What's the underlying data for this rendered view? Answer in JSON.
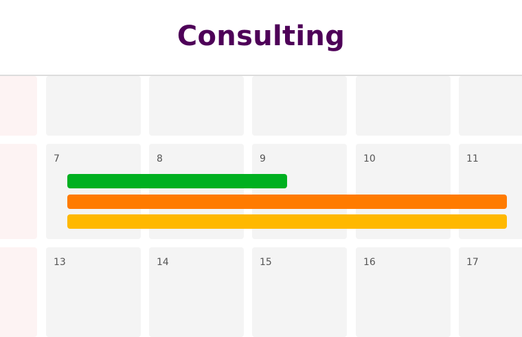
{
  "header": {
    "title": "Consulting"
  },
  "weeks": [
    {
      "days": [
        "",
        "",
        "",
        "",
        ""
      ]
    },
    {
      "days": [
        "7",
        "8",
        "9",
        "10",
        "11"
      ]
    },
    {
      "days": [
        "13",
        "14",
        "15",
        "16",
        "17"
      ]
    }
  ],
  "events": [
    {
      "color": "#00b020",
      "start_day": "7",
      "end_day": "9"
    },
    {
      "color": "#ff7b00",
      "start_day": "7",
      "end_day": "11"
    },
    {
      "color": "#ffb800",
      "start_day": "7",
      "end_day": "11"
    }
  ]
}
